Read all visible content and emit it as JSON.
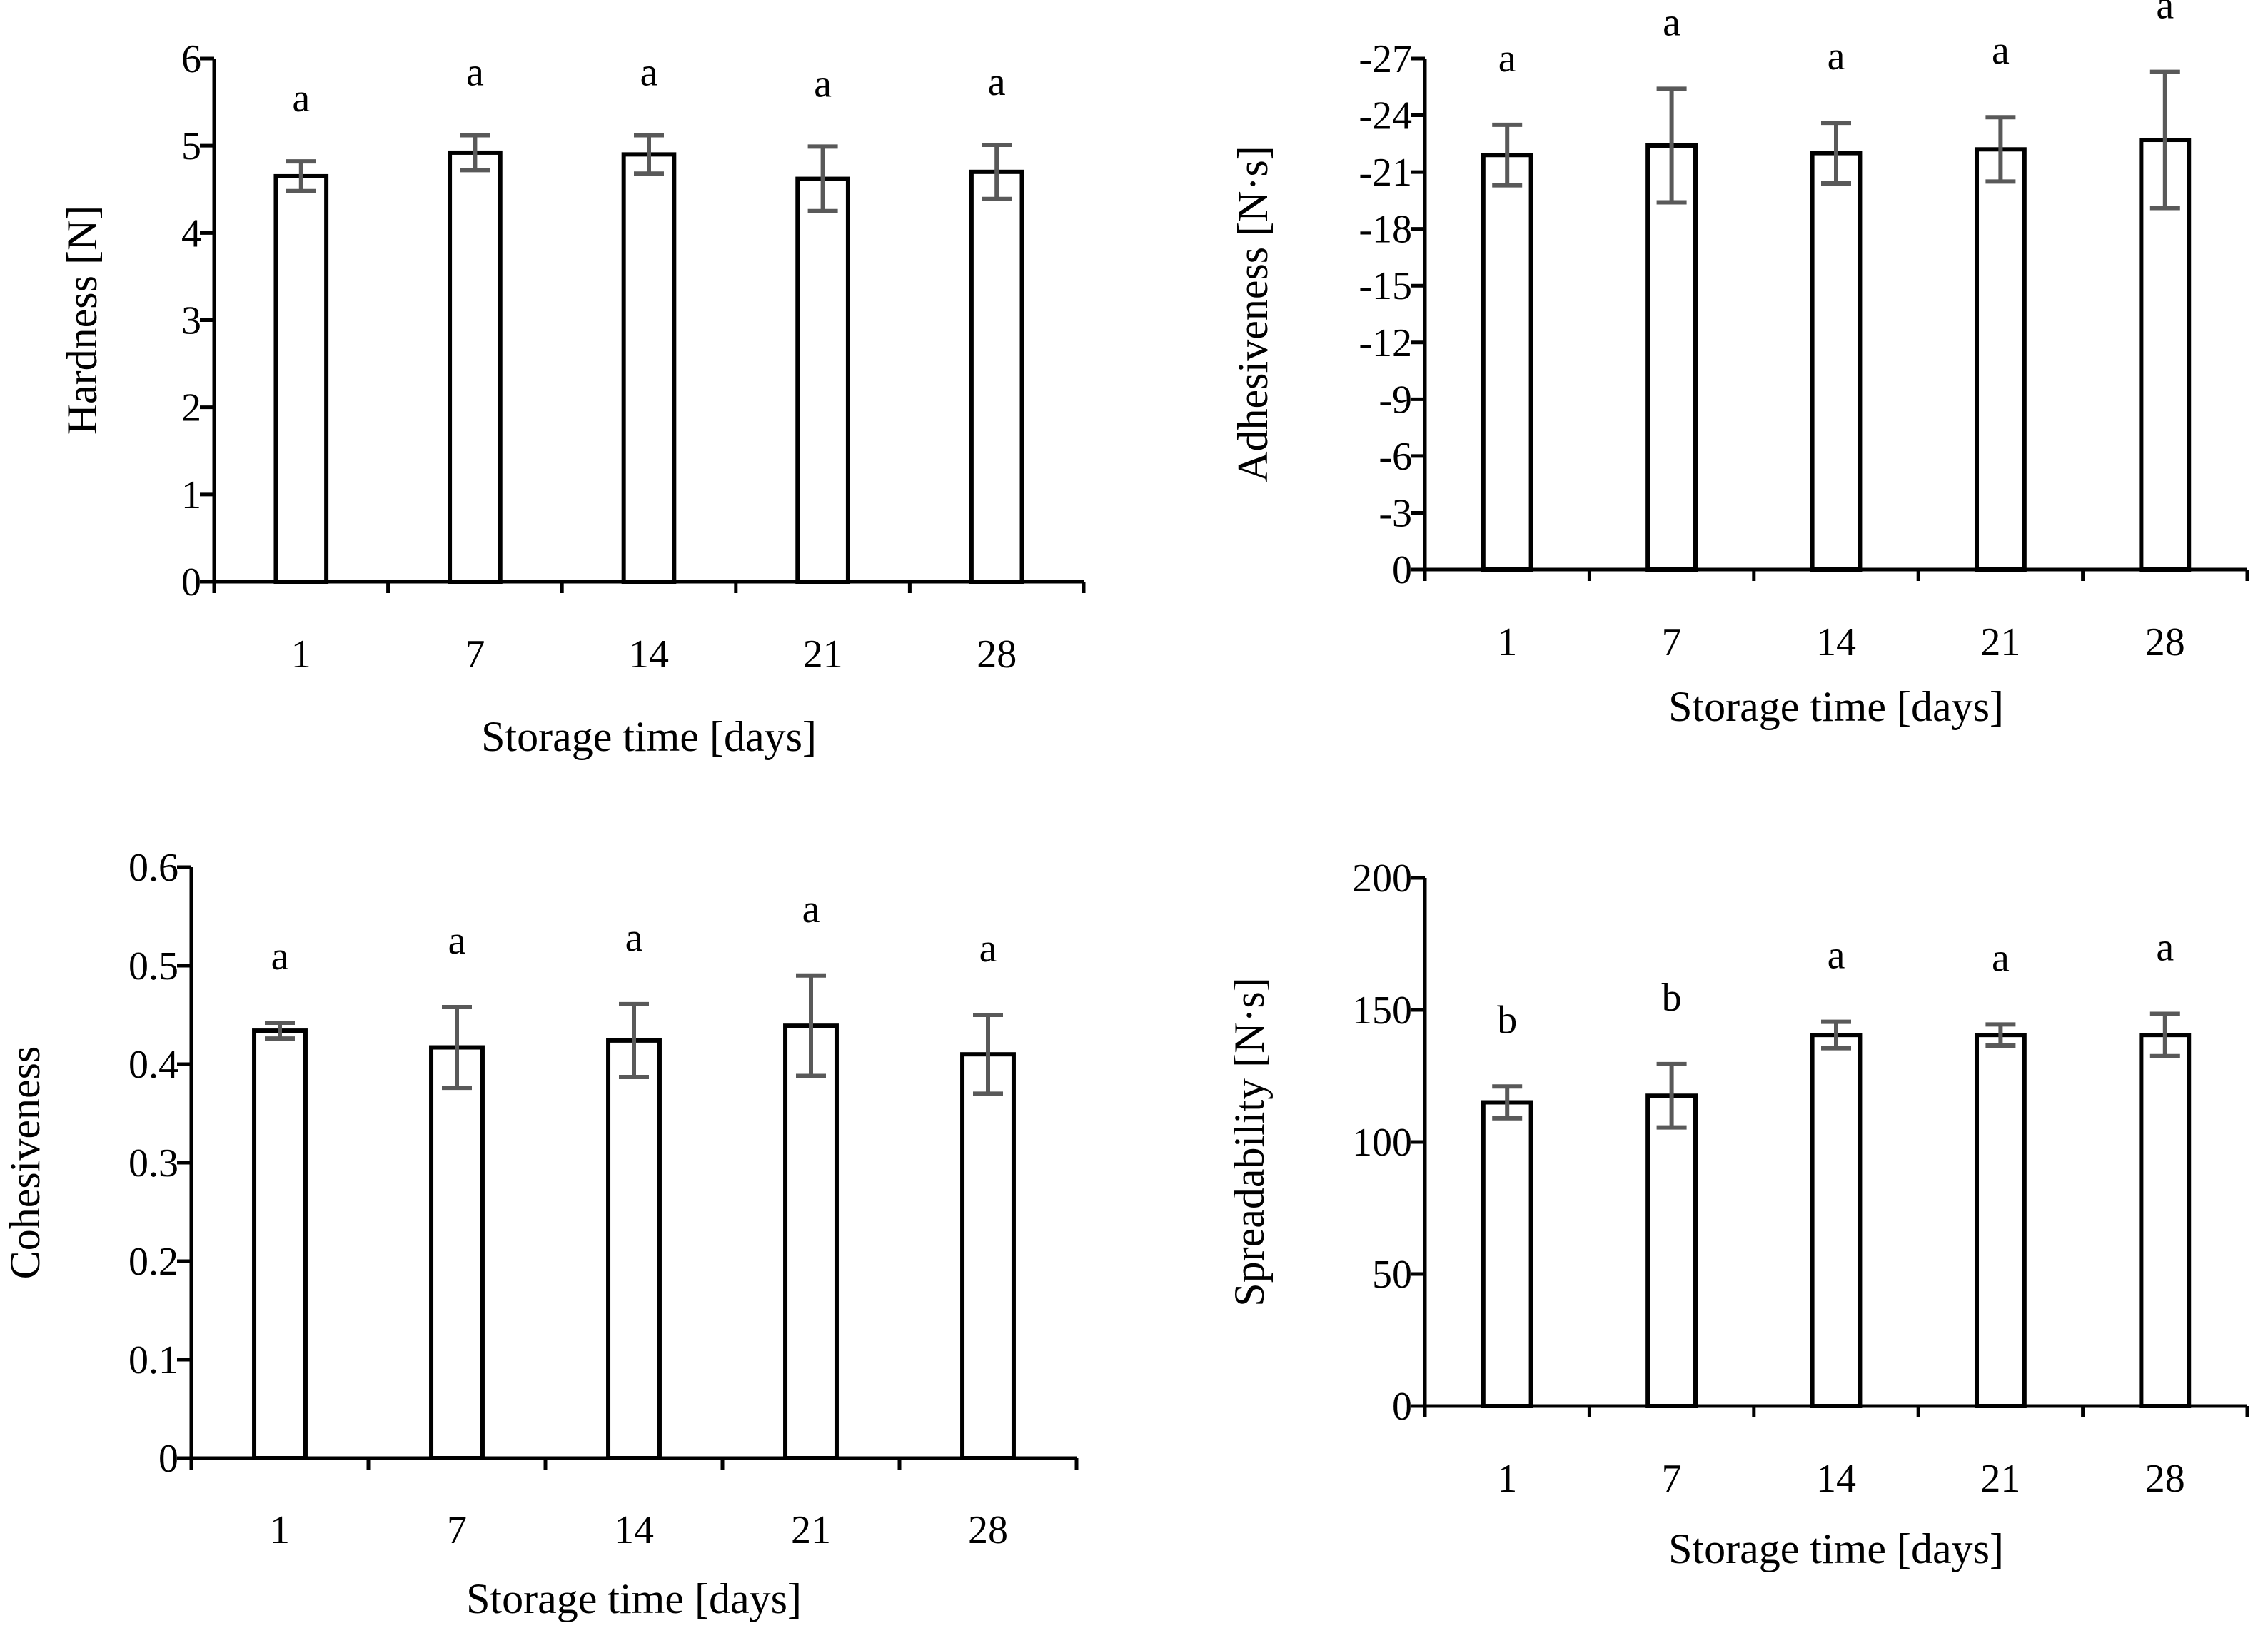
{
  "chart_data": [
    {
      "id": "hardness",
      "type": "bar",
      "categories": [
        "1",
        "7",
        "14",
        "21",
        "28"
      ],
      "values": [
        4.65,
        4.92,
        4.9,
        4.62,
        4.7
      ],
      "errors": [
        0.17,
        0.2,
        0.22,
        0.37,
        0.31
      ],
      "letters": [
        "a",
        "a",
        "a",
        "a",
        "a"
      ],
      "xlabel": "Storage time [days]",
      "ylabel": "Hardness [N]",
      "ylim": [
        0,
        6
      ],
      "yticks": [
        0,
        1,
        2,
        3,
        4,
        5,
        6
      ],
      "ytick_labels": [
        "0",
        "1",
        "2",
        "3",
        "4",
        "5",
        "6"
      ],
      "reversed": false,
      "grid": false
    },
    {
      "id": "adhesiveness",
      "type": "bar",
      "categories": [
        "1",
        "7",
        "14",
        "21",
        "28"
      ],
      "values": [
        -21.9,
        -22.4,
        -22.0,
        -22.2,
        -22.7
      ],
      "errors": [
        1.6,
        3.0,
        1.6,
        1.7,
        3.6
      ],
      "letters": [
        "a",
        "a",
        "a",
        "a",
        "a"
      ],
      "xlabel": "Storage time [days]",
      "ylabel": "Adhesiveness [N·s]",
      "ylim": [
        0,
        -27
      ],
      "yticks": [
        0,
        -3,
        -6,
        -9,
        -12,
        -15,
        -18,
        -21,
        -24,
        -27
      ],
      "ytick_labels": [
        "0",
        "-3",
        "-6",
        "-9",
        "-12",
        "-15",
        "-18",
        "-21",
        "-24",
        "-27"
      ],
      "reversed": true,
      "grid": false
    },
    {
      "id": "cohesiveness",
      "type": "bar",
      "categories": [
        "1",
        "7",
        "14",
        "21",
        "28"
      ],
      "values": [
        0.434,
        0.417,
        0.424,
        0.439,
        0.41
      ],
      "errors": [
        0.008,
        0.041,
        0.037,
        0.051,
        0.04
      ],
      "letters": [
        "a",
        "a",
        "a",
        "a",
        "a"
      ],
      "xlabel": "Storage time [days]",
      "ylabel": "Cohesiveness",
      "ylim": [
        0,
        0.6
      ],
      "yticks": [
        0,
        0.1,
        0.2,
        0.3,
        0.4,
        0.5,
        0.6
      ],
      "ytick_labels": [
        "0",
        "0.1",
        "0.2",
        "0.3",
        "0.4",
        "0.5",
        "0.6"
      ],
      "reversed": false,
      "grid": false
    },
    {
      "id": "spreadability",
      "type": "bar",
      "categories": [
        "1",
        "7",
        "14",
        "21",
        "28"
      ],
      "values": [
        115,
        117.5,
        140.5,
        140.5,
        140.5
      ],
      "errors": [
        6,
        12,
        5,
        4,
        8
      ],
      "letters": [
        "b",
        "b",
        "a",
        "a",
        "a"
      ],
      "xlabel": "Storage time [days]",
      "ylabel": "Spreadability [N·s]",
      "ylim": [
        0,
        200
      ],
      "yticks": [
        0,
        50,
        100,
        150,
        200
      ],
      "ytick_labels": [
        "0",
        "50",
        "100",
        "150",
        "200"
      ],
      "reversed": false,
      "grid": false
    }
  ]
}
